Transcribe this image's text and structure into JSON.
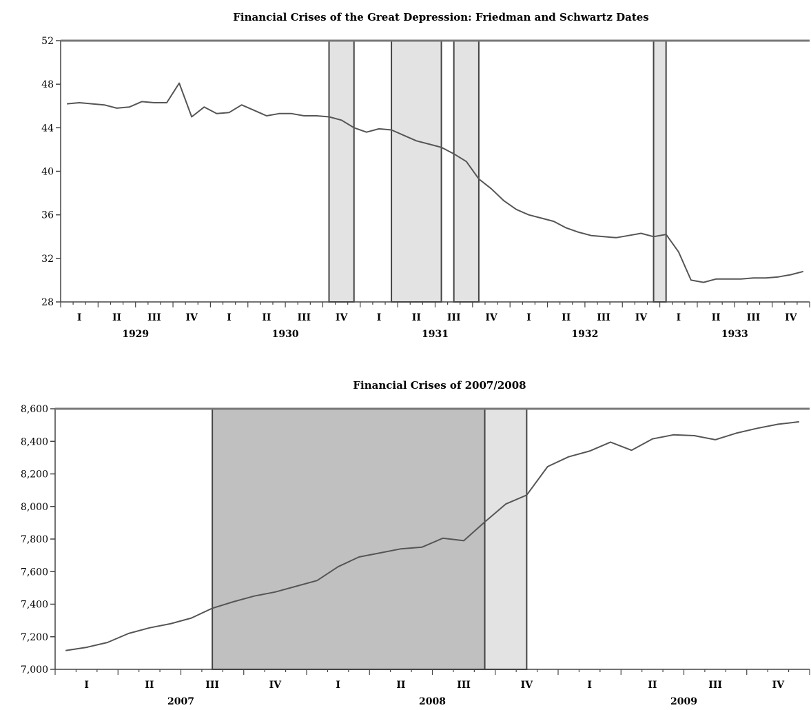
{
  "chart_data": [
    {
      "type": "line",
      "title": "Financial Crises of the Great Depression: Friedman and Schwartz Dates",
      "xlabel": "",
      "ylabel": "",
      "ylim": [
        28,
        52
      ],
      "yticks": [
        28,
        32,
        36,
        40,
        44,
        48,
        52
      ],
      "x_range": [
        "1929-01",
        "1933-12"
      ],
      "periods": [
        "1929-01",
        "1929-02",
        "1929-03",
        "1929-04",
        "1929-05",
        "1929-06",
        "1929-07",
        "1929-08",
        "1929-09",
        "1929-10",
        "1929-11",
        "1929-12",
        "1930-01",
        "1930-02",
        "1930-03",
        "1930-04",
        "1930-05",
        "1930-06",
        "1930-07",
        "1930-08",
        "1930-09",
        "1930-10",
        "1930-11",
        "1930-12",
        "1931-01",
        "1931-02",
        "1931-03",
        "1931-04",
        "1931-05",
        "1931-06",
        "1931-07",
        "1931-08",
        "1931-09",
        "1931-10",
        "1931-11",
        "1931-12",
        "1932-01",
        "1932-02",
        "1932-03",
        "1932-04",
        "1932-05",
        "1932-06",
        "1932-07",
        "1932-08",
        "1932-09",
        "1932-10",
        "1932-11",
        "1932-12",
        "1933-01",
        "1933-02",
        "1933-03",
        "1933-04",
        "1933-05",
        "1933-06",
        "1933-07",
        "1933-08",
        "1933-09",
        "1933-10",
        "1933-11",
        "1933-12"
      ],
      "series": [
        {
          "values": [
            46.2,
            46.3,
            46.2,
            46.1,
            45.8,
            45.9,
            46.4,
            46.3,
            46.3,
            48.1,
            45.0,
            45.9,
            45.3,
            45.4,
            46.1,
            45.6,
            45.1,
            45.3,
            45.3,
            45.1,
            45.1,
            45.0,
            44.7,
            44.0,
            43.6,
            43.9,
            43.8,
            43.3,
            42.8,
            42.5,
            42.2,
            41.6,
            40.9,
            39.3,
            38.4,
            37.3,
            36.5,
            36.0,
            35.7,
            35.4,
            34.8,
            34.4,
            34.1,
            34.0,
            33.9,
            34.1,
            34.3,
            34.0,
            34.2,
            32.6,
            30.0,
            29.8,
            30.1,
            30.1,
            30.1,
            30.2,
            30.2,
            30.3,
            30.5,
            30.8
          ]
        }
      ],
      "crisis_bands": [
        {
          "start": "1930-10",
          "end": "1930-12",
          "shade": "#e3e3e3"
        },
        {
          "start": "1931-03",
          "end": "1931-07",
          "shade": "#e3e3e3"
        },
        {
          "start": "1931-08",
          "end": "1931-10",
          "shade": "#e3e3e3"
        },
        {
          "start": "1932-12",
          "end": "1933-01",
          "shade": "#e3e3e3"
        }
      ],
      "quarter_labels": [
        "I",
        "II",
        "III",
        "IV",
        "I",
        "II",
        "III",
        "IV",
        "I",
        "II",
        "III",
        "IV",
        "I",
        "II",
        "III",
        "IV",
        "I",
        "II",
        "III",
        "IV"
      ],
      "year_labels": [
        "1929",
        "1930",
        "1931",
        "1932",
        "1933"
      ],
      "grid": false,
      "line_color": "#555555"
    },
    {
      "type": "line",
      "title": "Financial Crises of 2007/2008",
      "xlabel": "",
      "ylabel": "",
      "ylim": [
        7000,
        8600
      ],
      "yticks": [
        "7,000",
        "7,200",
        "7,400",
        "7,600",
        "7,800",
        "8,000",
        "8,200",
        "8,400",
        "8,600"
      ],
      "x_range": [
        "2007-01",
        "2009-12"
      ],
      "periods": [
        "2007-01",
        "2007-02",
        "2007-03",
        "2007-04",
        "2007-05",
        "2007-06",
        "2007-07",
        "2007-08",
        "2007-09",
        "2007-10",
        "2007-11",
        "2007-12",
        "2008-01",
        "2008-02",
        "2008-03",
        "2008-04",
        "2008-05",
        "2008-06",
        "2008-07",
        "2008-08",
        "2008-09",
        "2008-10",
        "2008-11",
        "2008-12",
        "2009-01",
        "2009-02",
        "2009-03",
        "2009-04",
        "2009-05",
        "2009-06",
        "2009-07",
        "2009-08",
        "2009-09",
        "2009-10",
        "2009-11",
        "2009-12"
      ],
      "series": [
        {
          "values": [
            7115,
            7135,
            7165,
            7220,
            7255,
            7280,
            7315,
            7375,
            7415,
            7450,
            7475,
            7510,
            7545,
            7630,
            7690,
            7715,
            7740,
            7750,
            7805,
            7790,
            7905,
            8015,
            8070,
            8245,
            8305,
            8340,
            8395,
            8345,
            8415,
            8440,
            8435,
            8410,
            8450,
            8480,
            8505,
            8520
          ]
        }
      ],
      "crisis_bands": [
        {
          "start": "2007-08",
          "end": "2008-09",
          "shade": "#c0c0c0"
        },
        {
          "start": "2008-09",
          "end": "2008-11",
          "shade": "#e3e3e3"
        }
      ],
      "quarter_labels": [
        "I",
        "II",
        "III",
        "IV",
        "I",
        "II",
        "III",
        "IV",
        "I",
        "II",
        "III",
        "IV"
      ],
      "year_labels": [
        "2007",
        "2008",
        "2009"
      ],
      "grid": false,
      "line_color": "#555555"
    }
  ]
}
